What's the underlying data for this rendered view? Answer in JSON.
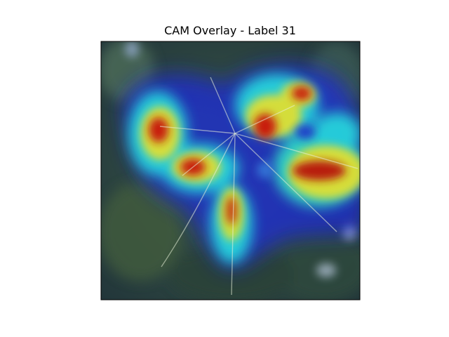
{
  "chart_data": {
    "type": "heatmap",
    "title": "CAM Overlay - Label 31",
    "xlabel": "",
    "ylabel": "",
    "axes_visible": false,
    "colormap": "jet",
    "overlay": "class activation map blended over a photograph of a green leaf",
    "hotspots": [
      {
        "region": "upper-left lobe",
        "intensity": 1.0
      },
      {
        "region": "upper-center",
        "intensity": 0.95
      },
      {
        "region": "right-center",
        "intensity": 1.0
      },
      {
        "region": "left-center",
        "intensity": 0.9
      },
      {
        "region": "lower-center",
        "intensity": 0.8
      },
      {
        "region": "upper-right",
        "intensity": 0.85
      }
    ]
  }
}
